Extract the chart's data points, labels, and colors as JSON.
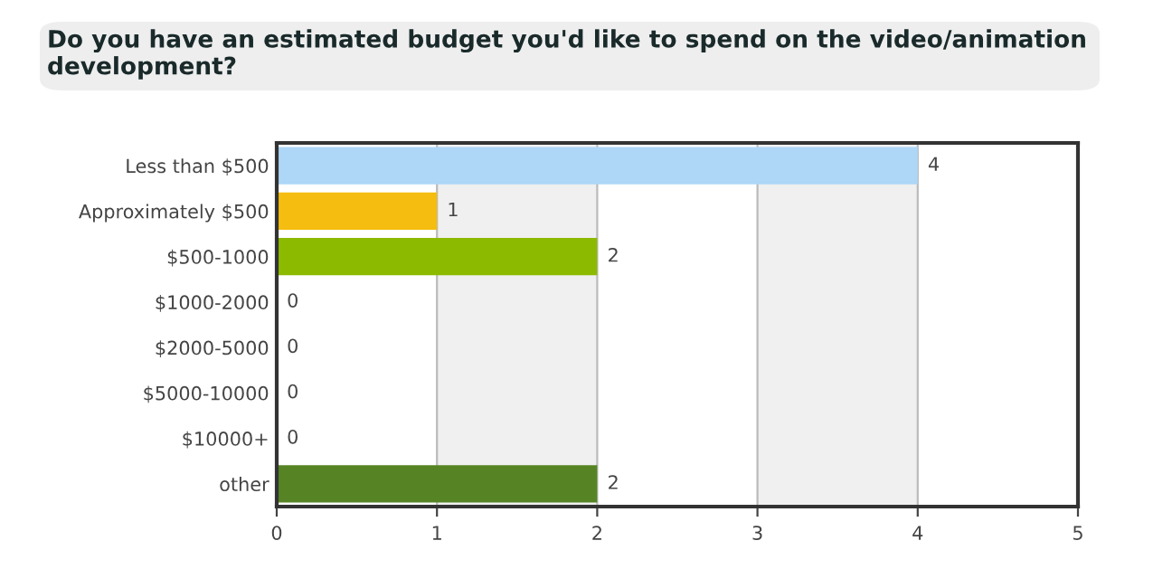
{
  "chart_data": {
    "type": "bar",
    "orientation": "horizontal",
    "title": "Do you have an estimated budget you'd like to spend on the video/animation development?",
    "categories": [
      "Less than $500",
      "Approximately $500",
      "$500-1000",
      "$1000-2000",
      "$2000-5000",
      "$5000-10000",
      "$10000+",
      "other"
    ],
    "values": [
      4,
      1,
      2,
      0,
      0,
      0,
      0,
      2
    ],
    "colors": [
      "#add6f7",
      "#f5bd0f",
      "#8cba00",
      "#8cba00",
      "#8cba00",
      "#8cba00",
      "#8cba00",
      "#568424"
    ],
    "xlim": [
      0,
      5
    ],
    "xticks": [
      0,
      1,
      2,
      3,
      4,
      5
    ],
    "grid": "x",
    "data_labels": true
  }
}
